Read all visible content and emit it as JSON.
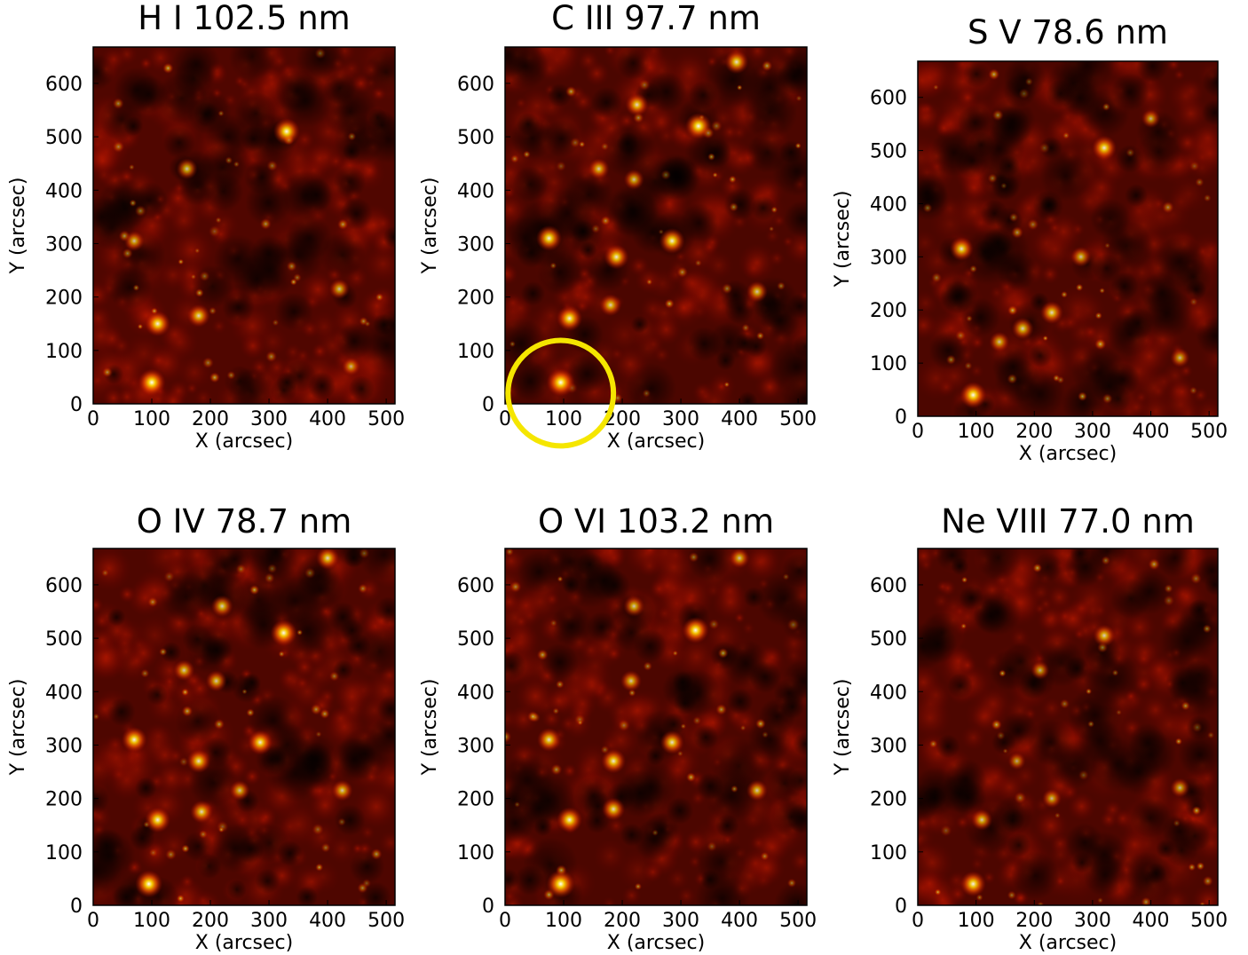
{
  "chart_data": [
    {
      "type": "heatmap",
      "title": "H I 102.5 nm",
      "xlabel": "X (arcsec)",
      "ylabel": "Y (arcsec)",
      "xlim": [
        0,
        515
      ],
      "ylim": [
        0,
        668
      ],
      "xticks": [
        0,
        100,
        200,
        300,
        400,
        500
      ],
      "yticks": [
        0,
        100,
        200,
        300,
        400,
        500,
        600
      ],
      "colormap": "hot",
      "brightness": 0.66,
      "grid": false,
      "bright_points": [
        {
          "x": 100,
          "y": 40,
          "intensity": 0.95
        },
        {
          "x": 110,
          "y": 150,
          "intensity": 0.85
        },
        {
          "x": 180,
          "y": 165,
          "intensity": 0.7
        },
        {
          "x": 330,
          "y": 510,
          "intensity": 0.9
        },
        {
          "x": 160,
          "y": 440,
          "intensity": 0.6
        },
        {
          "x": 70,
          "y": 305,
          "intensity": 0.55
        },
        {
          "x": 420,
          "y": 215,
          "intensity": 0.55
        },
        {
          "x": 440,
          "y": 70,
          "intensity": 0.45
        }
      ]
    },
    {
      "type": "heatmap",
      "title": "C III 97.7 nm",
      "xlabel": "X (arcsec)",
      "ylabel": "Y (arcsec)",
      "xlim": [
        0,
        515
      ],
      "ylim": [
        0,
        668
      ],
      "xticks": [
        0,
        100,
        200,
        300,
        400,
        500
      ],
      "yticks": [
        0,
        100,
        200,
        300,
        400,
        500,
        600
      ],
      "colormap": "hot",
      "brightness": 0.58,
      "grid": false,
      "highlight_circle": {
        "x": 95,
        "y": 20,
        "radius_arcsec": 90,
        "color": "#f5e600"
      },
      "bright_points": [
        {
          "x": 95,
          "y": 40,
          "intensity": 1.0
        },
        {
          "x": 110,
          "y": 160,
          "intensity": 0.85
        },
        {
          "x": 75,
          "y": 310,
          "intensity": 0.85
        },
        {
          "x": 285,
          "y": 305,
          "intensity": 0.85
        },
        {
          "x": 190,
          "y": 275,
          "intensity": 0.8
        },
        {
          "x": 330,
          "y": 520,
          "intensity": 0.9
        },
        {
          "x": 395,
          "y": 640,
          "intensity": 0.75
        },
        {
          "x": 225,
          "y": 560,
          "intensity": 0.7
        },
        {
          "x": 160,
          "y": 440,
          "intensity": 0.6
        },
        {
          "x": 220,
          "y": 420,
          "intensity": 0.55
        },
        {
          "x": 430,
          "y": 210,
          "intensity": 0.6
        },
        {
          "x": 180,
          "y": 185,
          "intensity": 0.65
        }
      ]
    },
    {
      "type": "heatmap",
      "title": "S V 78.6 nm",
      "xlabel": "X (arcsec)",
      "ylabel": "Y (arcsec)",
      "xlim": [
        0,
        515
      ],
      "ylim": [
        0,
        668
      ],
      "xticks": [
        0,
        100,
        200,
        300,
        400,
        500
      ],
      "yticks": [
        0,
        100,
        200,
        300,
        400,
        500,
        600
      ],
      "colormap": "hot",
      "brightness": 0.6,
      "grid": false,
      "bright_points": [
        {
          "x": 95,
          "y": 40,
          "intensity": 0.9
        },
        {
          "x": 75,
          "y": 315,
          "intensity": 0.75
        },
        {
          "x": 320,
          "y": 505,
          "intensity": 0.8
        },
        {
          "x": 230,
          "y": 195,
          "intensity": 0.7
        },
        {
          "x": 180,
          "y": 165,
          "intensity": 0.65
        },
        {
          "x": 140,
          "y": 140,
          "intensity": 0.55
        },
        {
          "x": 280,
          "y": 300,
          "intensity": 0.55
        },
        {
          "x": 450,
          "y": 110,
          "intensity": 0.5
        },
        {
          "x": 400,
          "y": 560,
          "intensity": 0.45
        }
      ]
    },
    {
      "type": "heatmap",
      "title": "O IV 78.7 nm",
      "xlabel": "X (arcsec)",
      "ylabel": "Y (arcsec)",
      "xlim": [
        0,
        515
      ],
      "ylim": [
        0,
        668
      ],
      "xticks": [
        0,
        100,
        200,
        300,
        400,
        500
      ],
      "yticks": [
        0,
        100,
        200,
        300,
        400,
        500,
        600
      ],
      "colormap": "hot",
      "brightness": 0.64,
      "grid": false,
      "bright_points": [
        {
          "x": 95,
          "y": 40,
          "intensity": 0.95
        },
        {
          "x": 110,
          "y": 160,
          "intensity": 0.85
        },
        {
          "x": 70,
          "y": 310,
          "intensity": 0.85
        },
        {
          "x": 285,
          "y": 305,
          "intensity": 0.8
        },
        {
          "x": 180,
          "y": 270,
          "intensity": 0.75
        },
        {
          "x": 325,
          "y": 510,
          "intensity": 0.9
        },
        {
          "x": 400,
          "y": 650,
          "intensity": 0.7
        },
        {
          "x": 220,
          "y": 560,
          "intensity": 0.65
        },
        {
          "x": 155,
          "y": 440,
          "intensity": 0.6
        },
        {
          "x": 210,
          "y": 420,
          "intensity": 0.6
        },
        {
          "x": 425,
          "y": 215,
          "intensity": 0.6
        },
        {
          "x": 185,
          "y": 175,
          "intensity": 0.7
        },
        {
          "x": 250,
          "y": 215,
          "intensity": 0.55
        }
      ]
    },
    {
      "type": "heatmap",
      "title": "O VI 103.2 nm",
      "xlabel": "X (arcsec)",
      "ylabel": "Y (arcsec)",
      "xlim": [
        0,
        515
      ],
      "ylim": [
        0,
        668
      ],
      "xticks": [
        0,
        100,
        200,
        300,
        400,
        500
      ],
      "yticks": [
        0,
        100,
        200,
        300,
        400,
        500,
        600
      ],
      "colormap": "hot",
      "brightness": 0.6,
      "grid": false,
      "bright_points": [
        {
          "x": 95,
          "y": 40,
          "intensity": 1.0
        },
        {
          "x": 110,
          "y": 160,
          "intensity": 0.85
        },
        {
          "x": 75,
          "y": 310,
          "intensity": 0.75
        },
        {
          "x": 285,
          "y": 305,
          "intensity": 0.75
        },
        {
          "x": 185,
          "y": 270,
          "intensity": 0.8
        },
        {
          "x": 325,
          "y": 515,
          "intensity": 0.9
        },
        {
          "x": 220,
          "y": 560,
          "intensity": 0.6
        },
        {
          "x": 215,
          "y": 420,
          "intensity": 0.6
        },
        {
          "x": 430,
          "y": 215,
          "intensity": 0.6
        },
        {
          "x": 185,
          "y": 180,
          "intensity": 0.7
        },
        {
          "x": 400,
          "y": 650,
          "intensity": 0.55
        }
      ]
    },
    {
      "type": "heatmap",
      "title": "Ne VIII 77.0 nm",
      "xlabel": "X (arcsec)",
      "ylabel": "Y (arcsec)",
      "xlim": [
        0,
        515
      ],
      "ylim": [
        0,
        668
      ],
      "xticks": [
        0,
        100,
        200,
        300,
        400,
        500
      ],
      "yticks": [
        0,
        100,
        200,
        300,
        400,
        500,
        600
      ],
      "colormap": "hot",
      "brightness": 0.62,
      "grid": false,
      "bright_points": [
        {
          "x": 95,
          "y": 40,
          "intensity": 0.85
        },
        {
          "x": 110,
          "y": 160,
          "intensity": 0.6
        },
        {
          "x": 320,
          "y": 505,
          "intensity": 0.65
        },
        {
          "x": 210,
          "y": 440,
          "intensity": 0.45
        },
        {
          "x": 450,
          "y": 220,
          "intensity": 0.5
        },
        {
          "x": 230,
          "y": 200,
          "intensity": 0.5
        },
        {
          "x": 170,
          "y": 270,
          "intensity": 0.4
        }
      ]
    }
  ]
}
